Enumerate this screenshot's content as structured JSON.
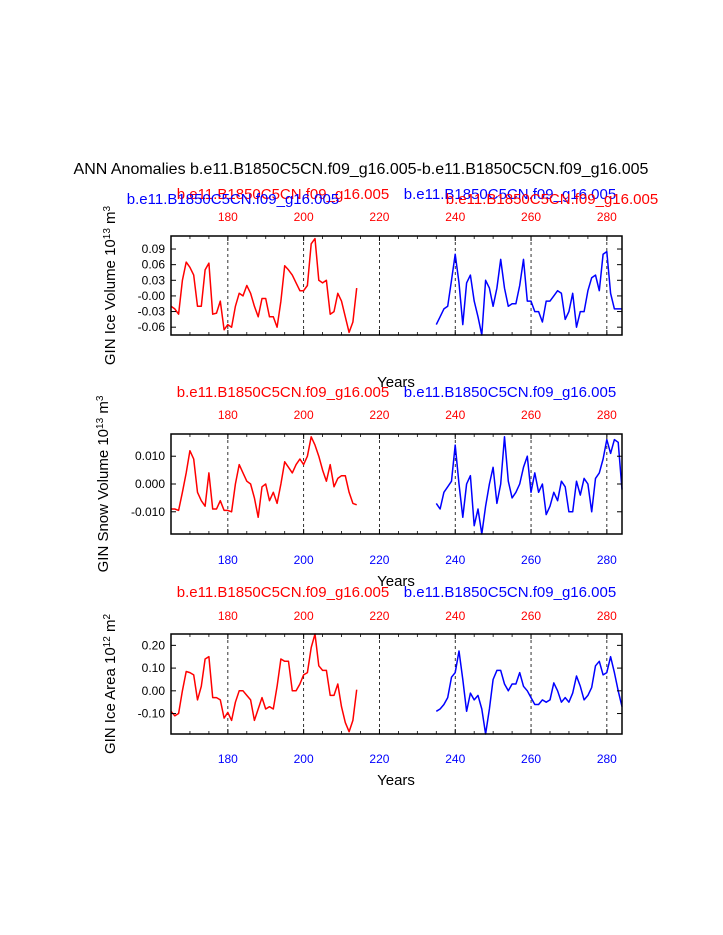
{
  "colors": {
    "series_a": "#ff0000",
    "series_b": "#0000ff",
    "axis": "#000000",
    "grid": "#000000"
  },
  "title": "ANN Anomalies b.e11.B1850C5CN.f09_g16.005-b.e11.B1850C5CN.f09_g16.005",
  "chart_data": [
    {
      "type": "line",
      "ylabel": "GIN Ice Volume 10^13 m^3",
      "ylabel_parts": [
        "GIN Ice Volume 10",
        "13",
        " m",
        "3"
      ],
      "xlabel": "Years",
      "legend_red": "b.e11.B1850C5CN.f09_g16.005",
      "legend_blue": "b.e11.B1850C5CN.f09_g16.005",
      "legend_red_right": "b.e11.B1850C5CN.f09_g16.005",
      "legend_blue_left": "b.e11.B1850C5CN.f09_g16.005",
      "xlim": [
        165,
        284
      ],
      "ylim": [
        -0.075,
        0.115
      ],
      "yticks": [
        -0.06,
        -0.03,
        0.0,
        0.03,
        0.06,
        0.09
      ],
      "ytick_labels": [
        "-0.06",
        "-0.03",
        "-0.00",
        "0.03",
        "0.06",
        "0.09"
      ],
      "xticks": [
        180,
        200,
        220,
        240,
        260,
        280
      ],
      "xtick_labels_top": [
        "180",
        "200",
        "220",
        "240",
        "260",
        "280"
      ],
      "top_tick_color": "red",
      "bottom_tick_color": "none",
      "series": [
        {
          "name": "b.e11.B1850C5CN.f09_g16.005",
          "color": "red",
          "x": [
            165,
            166,
            167,
            168,
            169,
            170,
            171,
            172,
            173,
            174,
            175,
            176,
            177,
            178,
            179,
            180,
            181,
            182,
            183,
            184,
            185,
            186,
            187,
            188,
            189,
            190,
            191,
            192,
            193,
            194,
            195,
            196,
            197,
            198,
            199,
            200,
            201,
            202,
            203,
            204,
            205,
            206,
            207,
            208,
            209,
            210,
            211,
            212,
            213,
            214
          ],
          "values": [
            -0.02,
            -0.025,
            -0.035,
            0.03,
            0.065,
            0.055,
            0.04,
            -0.02,
            -0.02,
            0.05,
            0.063,
            -0.035,
            -0.033,
            -0.01,
            -0.065,
            -0.055,
            -0.06,
            -0.02,
            0.005,
            0.0,
            0.02,
            0.005,
            -0.02,
            -0.04,
            -0.005,
            -0.005,
            -0.04,
            -0.04,
            -0.06,
            -0.01,
            0.058,
            0.05,
            0.04,
            0.025,
            0.01,
            0.01,
            0.02,
            0.1,
            0.11,
            0.03,
            0.025,
            0.03,
            -0.035,
            -0.03,
            0.005,
            -0.01,
            -0.04,
            -0.07,
            -0.05,
            0.015
          ]
        },
        {
          "name": "b.e11.B1850C5CN.f09_g16.005",
          "color": "blue",
          "x": [
            235,
            236,
            237,
            238,
            239,
            240,
            241,
            242,
            243,
            244,
            245,
            246,
            247,
            248,
            249,
            250,
            251,
            252,
            253,
            254,
            255,
            256,
            257,
            258,
            259,
            260,
            261,
            262,
            263,
            264,
            265,
            266,
            267,
            268,
            269,
            270,
            271,
            272,
            273,
            274,
            275,
            276,
            277,
            278,
            279,
            280,
            281,
            282,
            283,
            284
          ],
          "values": [
            -0.055,
            -0.04,
            -0.025,
            -0.02,
            0.03,
            0.08,
            0.025,
            -0.055,
            0.025,
            0.04,
            -0.01,
            -0.04,
            -0.075,
            0.03,
            0.015,
            -0.02,
            0.015,
            0.07,
            0.015,
            -0.02,
            -0.015,
            -0.015,
            0.02,
            0.07,
            -0.01,
            -0.01,
            -0.03,
            -0.03,
            -0.05,
            -0.01,
            -0.01,
            0.0,
            0.01,
            0.005,
            -0.045,
            -0.03,
            0.005,
            -0.06,
            -0.03,
            -0.03,
            0.01,
            0.035,
            0.04,
            0.01,
            0.08,
            0.085,
            0.005,
            -0.025,
            -0.025,
            -0.025
          ]
        }
      ]
    },
    {
      "type": "line",
      "ylabel": "GIN Snow Volume 10^13 m^3",
      "ylabel_parts": [
        "GIN Snow Volume 10",
        "13",
        " m",
        "3"
      ],
      "xlabel": "Years",
      "legend_red": "b.e11.B1850C5CN.f09_g16.005",
      "legend_blue": "b.e11.B1850C5CN.f09_g16.005",
      "xlim": [
        165,
        284
      ],
      "ylim": [
        -0.018,
        0.018
      ],
      "yticks": [
        -0.01,
        0.0,
        0.01
      ],
      "ytick_labels": [
        "-0.010",
        "0.000",
        "0.010"
      ],
      "xticks": [
        180,
        200,
        220,
        240,
        260,
        280
      ],
      "xtick_labels_top": [
        "180",
        "200",
        "220",
        "240",
        "260",
        "280"
      ],
      "xtick_labels_bottom": [
        "180",
        "200",
        "220",
        "240",
        "260",
        "280"
      ],
      "top_tick_color": "red",
      "bottom_tick_color": "blue",
      "series": [
        {
          "name": "b.e11.B1850C5CN.f09_g16.005",
          "color": "red",
          "x": [
            165,
            166,
            167,
            168,
            169,
            170,
            171,
            172,
            173,
            174,
            175,
            176,
            177,
            178,
            179,
            180,
            181,
            182,
            183,
            184,
            185,
            186,
            187,
            188,
            189,
            190,
            191,
            192,
            193,
            194,
            195,
            196,
            197,
            198,
            199,
            200,
            201,
            202,
            203,
            204,
            205,
            206,
            207,
            208,
            209,
            210,
            211,
            212,
            213,
            214
          ],
          "values": [
            -0.009,
            -0.009,
            -0.0095,
            -0.003,
            0.004,
            0.012,
            0.009,
            -0.003,
            -0.006,
            -0.008,
            0.004,
            -0.009,
            -0.009,
            -0.006,
            -0.0095,
            -0.0095,
            -0.01,
            0.0,
            0.007,
            0.004,
            0.001,
            0.0,
            -0.005,
            -0.012,
            -0.001,
            0.0,
            -0.006,
            -0.003,
            -0.007,
            0.0,
            0.008,
            0.006,
            0.004,
            0.007,
            0.009,
            0.007,
            0.01,
            0.017,
            0.014,
            0.01,
            0.005,
            0.001,
            0.007,
            -0.001,
            0.002,
            0.003,
            0.003,
            -0.003,
            -0.007,
            -0.0075
          ]
        },
        {
          "name": "b.e11.B1850C5CN.f09_g16.005",
          "color": "blue",
          "x": [
            235,
            236,
            237,
            238,
            239,
            240,
            241,
            242,
            243,
            244,
            245,
            246,
            247,
            248,
            249,
            250,
            251,
            252,
            253,
            254,
            255,
            256,
            257,
            258,
            259,
            260,
            261,
            262,
            263,
            264,
            265,
            266,
            267,
            268,
            269,
            270,
            271,
            272,
            273,
            274,
            275,
            276,
            277,
            278,
            279,
            280,
            281,
            282,
            283,
            284
          ],
          "values": [
            -0.007,
            -0.009,
            -0.003,
            -0.001,
            0.001,
            0.014,
            0.0,
            -0.012,
            0.0,
            0.003,
            -0.015,
            -0.009,
            -0.018,
            -0.008,
            0.0,
            0.006,
            -0.007,
            0.0,
            0.017,
            0.001,
            -0.005,
            -0.003,
            0.0,
            0.006,
            0.01,
            -0.003,
            0.004,
            -0.003,
            0.0,
            -0.011,
            -0.008,
            -0.003,
            -0.006,
            0.001,
            -0.001,
            -0.01,
            -0.01,
            0.001,
            -0.004,
            0.002,
            0.0,
            -0.01,
            0.002,
            0.004,
            0.009,
            0.016,
            0.011,
            0.016,
            0.015,
            -0.002
          ]
        }
      ]
    },
    {
      "type": "line",
      "ylabel": "GIN Ice Area 10^12 m^2",
      "ylabel_parts": [
        "GIN Ice Area 10",
        "12",
        " m",
        "2"
      ],
      "xlabel": "Years",
      "legend_red": "b.e11.B1850C5CN.f09_g16.005",
      "legend_blue": "b.e11.B1850C5CN.f09_g16.005",
      "xlim": [
        165,
        284
      ],
      "ylim": [
        -0.19,
        0.25
      ],
      "yticks": [
        -0.1,
        0.0,
        0.1,
        0.2
      ],
      "ytick_labels": [
        "-0.10",
        "0.00",
        "0.10",
        "0.20"
      ],
      "xticks": [
        180,
        200,
        220,
        240,
        260,
        280
      ],
      "xtick_labels_top": [
        "180",
        "200",
        "220",
        "240",
        "260",
        "280"
      ],
      "xtick_labels_bottom": [
        "180",
        "200",
        "220",
        "240",
        "260",
        "280"
      ],
      "top_tick_color": "red",
      "bottom_tick_color": "blue",
      "series": [
        {
          "name": "b.e11.B1850C5CN.f09_g16.005",
          "color": "red",
          "x": [
            165,
            166,
            167,
            168,
            169,
            170,
            171,
            172,
            173,
            174,
            175,
            176,
            177,
            178,
            179,
            180,
            181,
            182,
            183,
            184,
            185,
            186,
            187,
            188,
            189,
            190,
            191,
            192,
            193,
            194,
            195,
            196,
            197,
            198,
            199,
            200,
            201,
            202,
            203,
            204,
            205,
            206,
            207,
            208,
            209,
            210,
            211,
            212,
            213,
            214
          ],
          "values": [
            -0.09,
            -0.11,
            -0.1,
            0.0,
            0.085,
            0.08,
            0.07,
            -0.04,
            0.02,
            0.14,
            0.15,
            -0.03,
            -0.03,
            -0.04,
            -0.12,
            -0.095,
            -0.13,
            -0.05,
            0.0,
            0.0,
            -0.02,
            -0.04,
            -0.13,
            -0.08,
            -0.03,
            -0.08,
            -0.07,
            -0.08,
            0.02,
            0.14,
            0.13,
            0.13,
            0.0,
            0.0,
            0.03,
            0.07,
            0.08,
            0.19,
            0.25,
            0.11,
            0.09,
            0.09,
            -0.02,
            -0.02,
            0.03,
            -0.07,
            -0.14,
            -0.18,
            -0.13,
            0.005
          ]
        },
        {
          "name": "b.e11.B1850C5CN.f09_g16.005",
          "color": "blue",
          "x": [
            235,
            236,
            237,
            238,
            239,
            240,
            241,
            242,
            243,
            244,
            245,
            246,
            247,
            248,
            249,
            250,
            251,
            252,
            253,
            254,
            255,
            256,
            257,
            258,
            259,
            260,
            261,
            262,
            263,
            264,
            265,
            266,
            267,
            268,
            269,
            270,
            271,
            272,
            273,
            274,
            275,
            276,
            277,
            278,
            279,
            280,
            281,
            282,
            283,
            284
          ],
          "values": [
            -0.09,
            -0.08,
            -0.06,
            -0.03,
            0.06,
            0.08,
            0.175,
            0.05,
            -0.09,
            -0.01,
            -0.04,
            -0.02,
            -0.08,
            -0.19,
            -0.08,
            0.05,
            0.09,
            0.09,
            0.03,
            0.0,
            0.03,
            0.03,
            0.08,
            0.02,
            0.0,
            -0.03,
            -0.06,
            -0.06,
            -0.04,
            -0.05,
            -0.04,
            0.035,
            0.0,
            -0.05,
            -0.03,
            -0.05,
            -0.01,
            0.065,
            0.02,
            -0.04,
            -0.02,
            0.015,
            0.11,
            0.13,
            0.07,
            0.08,
            0.15,
            0.08,
            0.0,
            -0.07
          ]
        }
      ]
    }
  ]
}
